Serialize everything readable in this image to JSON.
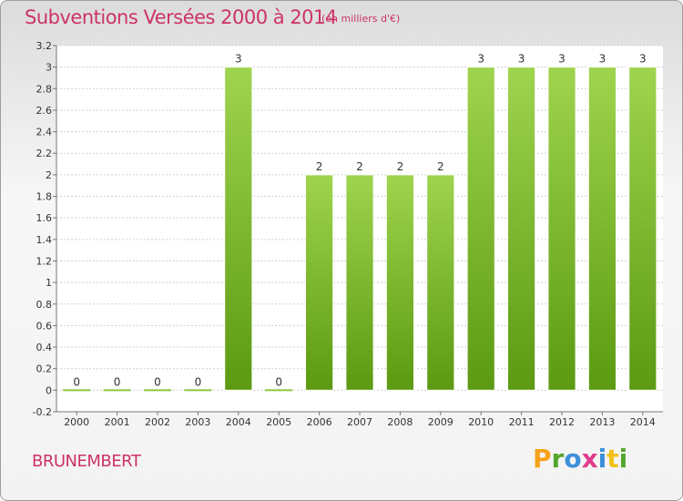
{
  "header": {
    "title": "Subventions Versées 2000 à 2014",
    "unit_note": "(en milliers d'€)"
  },
  "footer": {
    "town": "BRUNEMBERT",
    "logo": {
      "letters": [
        "P",
        "r",
        "o",
        "x",
        "i",
        "t",
        "i"
      ]
    }
  },
  "colors": {
    "title": "#cc3366",
    "bar_top": "#9fd44e",
    "bar_bottom": "#5b9a12",
    "zero_bar": "#8cc63f",
    "logo_letters": [
      "#f7a21b",
      "#55a52d",
      "#3c8fd9",
      "#e03c8c",
      "#3c8fd9",
      "#f2c21b",
      "#55a52d"
    ]
  },
  "chart_data": {
    "type": "bar",
    "title": "Subventions Versées 2000 à 2014",
    "subtitle": "(en milliers d'€)",
    "categories": [
      "2000",
      "2001",
      "2002",
      "2003",
      "2004",
      "2005",
      "2006",
      "2007",
      "2008",
      "2009",
      "2010",
      "2011",
      "2012",
      "2013",
      "2014"
    ],
    "values": [
      0,
      0,
      0,
      0,
      3,
      0,
      2,
      2,
      2,
      2,
      3,
      3,
      3,
      3,
      3
    ],
    "data_labels": [
      "0",
      "0",
      "0",
      "0",
      "3",
      "0",
      "2",
      "2",
      "2",
      "2",
      "3",
      "3",
      "3",
      "3",
      "3"
    ],
    "ylim": [
      -0.2,
      3.2
    ],
    "yticks": [
      -0.2,
      0,
      0.2,
      0.4,
      0.6,
      0.8,
      1,
      1.2,
      1.4,
      1.6,
      1.8,
      2,
      2.2,
      2.4,
      2.6,
      2.8,
      3,
      3.2
    ],
    "ytick_labels": [
      "-0.2",
      "0",
      "0.2",
      "0.4",
      "0.6",
      "0.8",
      "1",
      "1.2",
      "1.4",
      "1.6",
      "1.8",
      "2",
      "2.2",
      "2.4",
      "2.6",
      "2.8",
      "3",
      "3.2"
    ],
    "grid": true
  }
}
